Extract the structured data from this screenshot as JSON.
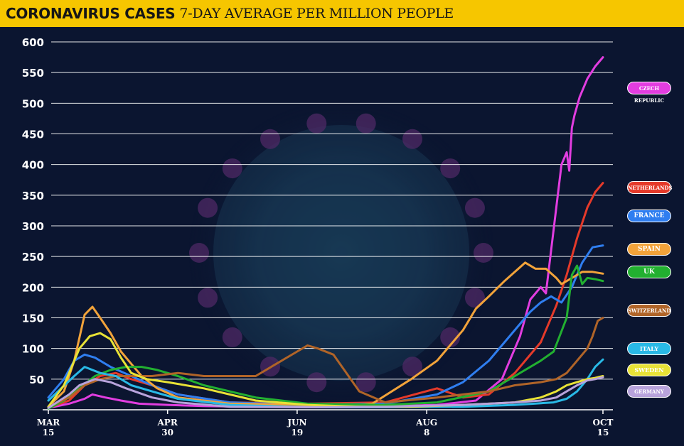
{
  "header": {
    "title_bold": "CORONAVIRUS CASES",
    "title_rest": "7-DAY AVERAGE PER MILLION PEOPLE"
  },
  "colors": {
    "banner": "#f6c600",
    "background": "#0b1530"
  },
  "chart_data": {
    "type": "line",
    "title": "CORONAVIRUS CASES 7-DAY AVERAGE PER MILLION PEOPLE",
    "xlabel": "",
    "ylabel": "",
    "ylim": [
      0,
      600
    ],
    "yticks": [
      50,
      100,
      150,
      200,
      250,
      300,
      350,
      400,
      450,
      500,
      550,
      600
    ],
    "xlim": [
      0,
      214
    ],
    "xticks": [
      {
        "day": 0,
        "line1": "MAR",
        "line2": "15"
      },
      {
        "day": 46,
        "line1": "APR",
        "line2": "30"
      },
      {
        "day": 96,
        "line1": "JUN",
        "line2": "19"
      },
      {
        "day": 146,
        "line1": "AUG",
        "line2": "8"
      },
      {
        "day": 214,
        "line1": "OCT",
        "line2": "15"
      }
    ],
    "grid": true,
    "series": [
      {
        "name": "Czech Republic",
        "label": "CZECH REPUBLIC",
        "color": "#e23de0",
        "label_y": 525,
        "font": 7,
        "x": [
          0,
          8,
          14,
          17,
          22,
          28,
          35,
          46,
          60,
          80,
          100,
          110,
          130,
          150,
          165,
          175,
          182,
          186,
          190,
          192,
          194,
          196,
          198,
          200,
          201,
          202,
          203,
          205,
          208,
          211,
          214
        ],
        "y": [
          3,
          10,
          18,
          25,
          20,
          15,
          10,
          8,
          6,
          5,
          5,
          5,
          6,
          8,
          15,
          50,
          120,
          180,
          200,
          190,
          260,
          330,
          400,
          420,
          390,
          460,
          480,
          510,
          540,
          560,
          575
        ]
      },
      {
        "name": "Netherlands",
        "label": "NETHERLANDS",
        "color": "#e53a2a",
        "label_y": 363,
        "font": 7,
        "x": [
          0,
          8,
          14,
          20,
          26,
          32,
          40,
          50,
          70,
          100,
          130,
          150,
          160,
          170,
          180,
          190,
          196,
          200,
          204,
          208,
          211,
          214
        ],
        "y": [
          3,
          15,
          40,
          55,
          60,
          50,
          40,
          25,
          12,
          10,
          12,
          35,
          20,
          25,
          60,
          110,
          170,
          220,
          280,
          330,
          355,
          370
        ]
      },
      {
        "name": "France",
        "label": "FRANCE",
        "color": "#2f7ef0",
        "label_y": 316,
        "font": 9,
        "x": [
          0,
          6,
          10,
          14,
          18,
          24,
          32,
          40,
          50,
          70,
          100,
          130,
          150,
          160,
          170,
          178,
          186,
          190,
          194,
          198,
          202,
          206,
          210,
          214
        ],
        "y": [
          20,
          50,
          80,
          90,
          85,
          70,
          55,
          40,
          25,
          12,
          8,
          10,
          25,
          45,
          80,
          120,
          160,
          175,
          185,
          175,
          200,
          240,
          265,
          268
        ]
      },
      {
        "name": "Spain",
        "label": "SPAIN",
        "color": "#f2a33a",
        "label_y": 262,
        "font": 9,
        "x": [
          0,
          6,
          10,
          14,
          17,
          20,
          24,
          28,
          32,
          36,
          42,
          50,
          70,
          100,
          120,
          125,
          140,
          150,
          160,
          165,
          170,
          176,
          180,
          184,
          188,
          192,
          196,
          198,
          202,
          206,
          210,
          214
        ],
        "y": [
          5,
          30,
          80,
          155,
          168,
          150,
          125,
          95,
          75,
          55,
          35,
          20,
          10,
          8,
          8,
          10,
          50,
          80,
          130,
          165,
          185,
          210,
          225,
          240,
          230,
          230,
          215,
          205,
          215,
          225,
          225,
          222
        ]
      },
      {
        "name": "UK",
        "label": "UK",
        "color": "#22b030",
        "label_y": 225,
        "font": 9,
        "x": [
          0,
          6,
          12,
          18,
          24,
          30,
          36,
          42,
          50,
          60,
          80,
          100,
          130,
          150,
          170,
          180,
          190,
          195,
          200,
          202,
          204,
          206,
          208,
          211,
          214
        ],
        "y": [
          2,
          15,
          35,
          55,
          65,
          70,
          70,
          65,
          55,
          40,
          20,
          10,
          8,
          12,
          30,
          55,
          80,
          95,
          150,
          220,
          235,
          205,
          215,
          213,
          210
        ]
      },
      {
        "name": "Switzerland",
        "label": "SWITZERLAND",
        "color": "#b06428",
        "label_y": 162,
        "font": 7,
        "x": [
          0,
          8,
          14,
          20,
          26,
          32,
          40,
          50,
          60,
          80,
          90,
          96,
          100,
          104,
          110,
          115,
          120,
          130,
          150,
          170,
          180,
          190,
          196,
          200,
          204,
          206,
          208,
          210,
          212,
          214
        ],
        "y": [
          5,
          20,
          40,
          50,
          55,
          55,
          55,
          60,
          55,
          55,
          80,
          95,
          105,
          100,
          90,
          60,
          30,
          12,
          20,
          30,
          40,
          45,
          50,
          60,
          80,
          90,
          100,
          120,
          145,
          150
        ]
      },
      {
        "name": "Italy",
        "label": "ITALY",
        "color": "#29b9e6",
        "label_y": 100,
        "font": 8,
        "x": [
          0,
          10,
          14,
          20,
          26,
          32,
          40,
          50,
          70,
          100,
          130,
          160,
          180,
          195,
          200,
          204,
          208,
          211,
          214
        ],
        "y": [
          15,
          55,
          70,
          60,
          55,
          40,
          30,
          18,
          8,
          4,
          4,
          5,
          8,
          12,
          18,
          30,
          50,
          70,
          82
        ]
      },
      {
        "name": "Sweden",
        "label": "SWEDEN",
        "color": "#e8e236",
        "label_y": 65,
        "font": 8,
        "x": [
          0,
          6,
          12,
          16,
          20,
          24,
          28,
          32,
          38,
          46,
          60,
          80,
          100,
          120,
          140,
          160,
          180,
          190,
          196,
          200,
          204,
          208,
          211,
          214
        ],
        "y": [
          5,
          40,
          100,
          120,
          125,
          115,
          85,
          60,
          50,
          45,
          35,
          15,
          8,
          5,
          5,
          8,
          12,
          20,
          30,
          40,
          45,
          50,
          52,
          55
        ]
      },
      {
        "name": "Germany",
        "label": "GERMANY",
        "color": "#b8a3dc",
        "label_y": 30,
        "font": 7,
        "x": [
          0,
          8,
          12,
          18,
          24,
          30,
          40,
          50,
          70,
          100,
          130,
          160,
          180,
          190,
          196,
          200,
          204,
          208,
          211,
          214
        ],
        "y": [
          3,
          25,
          40,
          50,
          45,
          35,
          20,
          12,
          5,
          4,
          5,
          8,
          12,
          15,
          20,
          30,
          40,
          48,
          50,
          53
        ]
      }
    ]
  }
}
